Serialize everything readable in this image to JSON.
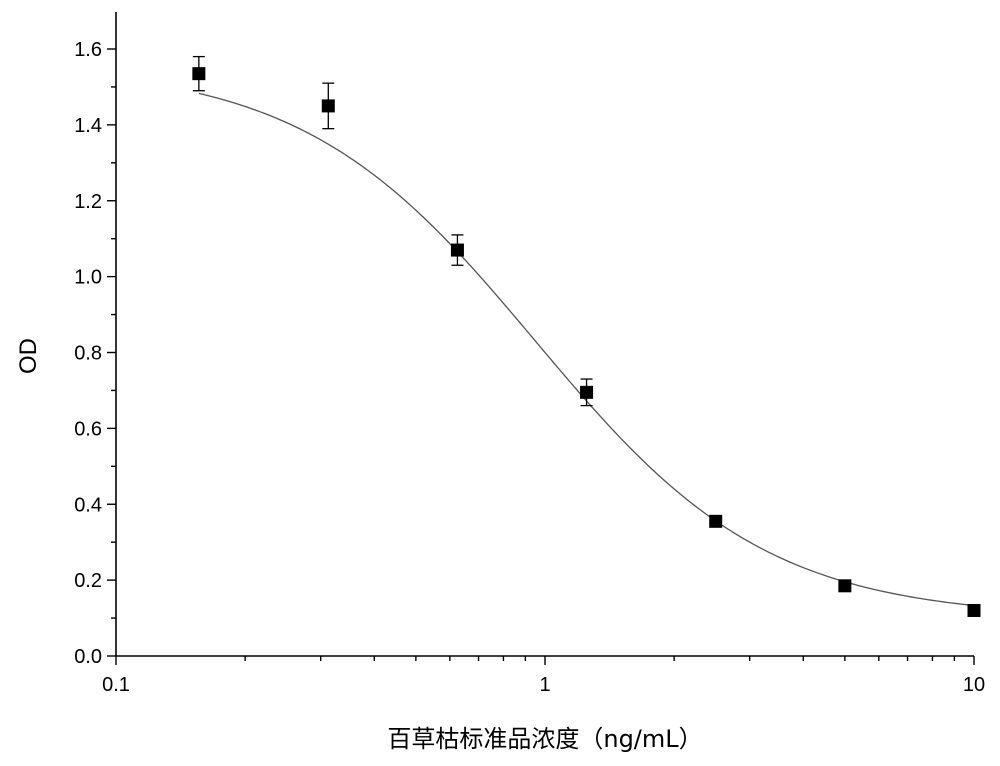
{
  "chart_data": {
    "type": "scatter",
    "xlabel": "百草枯标准品浓度（ng/mL）",
    "ylabel": "OD",
    "x_scale": "log",
    "xlim": [
      0.1,
      10
    ],
    "ylim": [
      0.0,
      1.7
    ],
    "x_ticks": [
      "0.1",
      "1",
      "10"
    ],
    "y_ticks": [
      "0.0",
      "0.2",
      "0.4",
      "0.6",
      "0.8",
      "1.0",
      "1.2",
      "1.4",
      "1.6"
    ],
    "grid": false,
    "series": [
      {
        "x": [
          0.156,
          0.3125,
          0.625,
          1.25,
          2.5,
          5,
          10
        ],
        "y": [
          1.535,
          1.45,
          1.07,
          0.695,
          0.355,
          0.185,
          0.12
        ],
        "error": [
          0.045,
          0.06,
          0.04,
          0.035,
          0.01,
          0.01,
          0.01
        ]
      }
    ],
    "fit_curve": {
      "type": "four-parameter logistic",
      "A1": 1.56,
      "A2": 0.1,
      "x0": 0.95,
      "p": 1.6
    }
  }
}
